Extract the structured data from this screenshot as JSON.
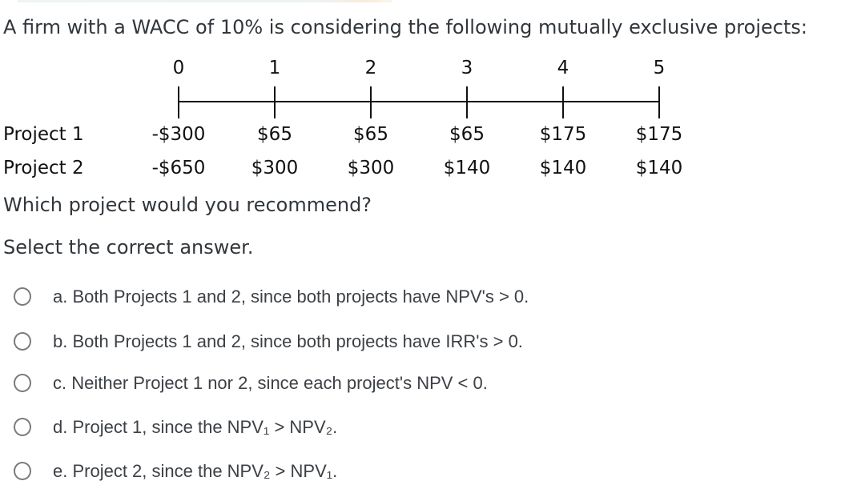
{
  "question": {
    "text": "A firm with a WACC of 10% is considering the following mutually exclusive projects:",
    "prompt": "Which project would you recommend?",
    "instruction": "Select the correct answer."
  },
  "timeline": {
    "periods": [
      "0",
      "1",
      "2",
      "3",
      "4",
      "5"
    ],
    "rows": [
      {
        "label": "Project 1",
        "values": [
          "-$300",
          "$65",
          "$65",
          "$65",
          "$175",
          "$175"
        ]
      },
      {
        "label": "Project 2",
        "values": [
          "-$650",
          "$300",
          "$300",
          "$140",
          "$140",
          "$140"
        ]
      }
    ]
  },
  "options": [
    {
      "key": "a",
      "label": "a. Both Projects 1 and 2, since both projects have NPV's > 0.",
      "selected": false
    },
    {
      "key": "b",
      "label": "b. Both Projects 1 and 2, since both projects have IRR's > 0.",
      "selected": false
    },
    {
      "key": "c",
      "label": "c. Neither Project 1 nor 2, since each project's NPV < 0.",
      "selected": false
    },
    {
      "key": "d",
      "label": "d. Project 1, since the NPV₁ > NPV₂.",
      "selected": false
    },
    {
      "key": "e",
      "label": "e. Project 2, since the NPV₂ > NPV₁.",
      "selected": false
    }
  ],
  "colors": {
    "background": "#ffffff",
    "question_text": "#31363b",
    "figure_text": "#111111",
    "option_text": "#3c4045",
    "radio_border": "#7a7a7a"
  }
}
